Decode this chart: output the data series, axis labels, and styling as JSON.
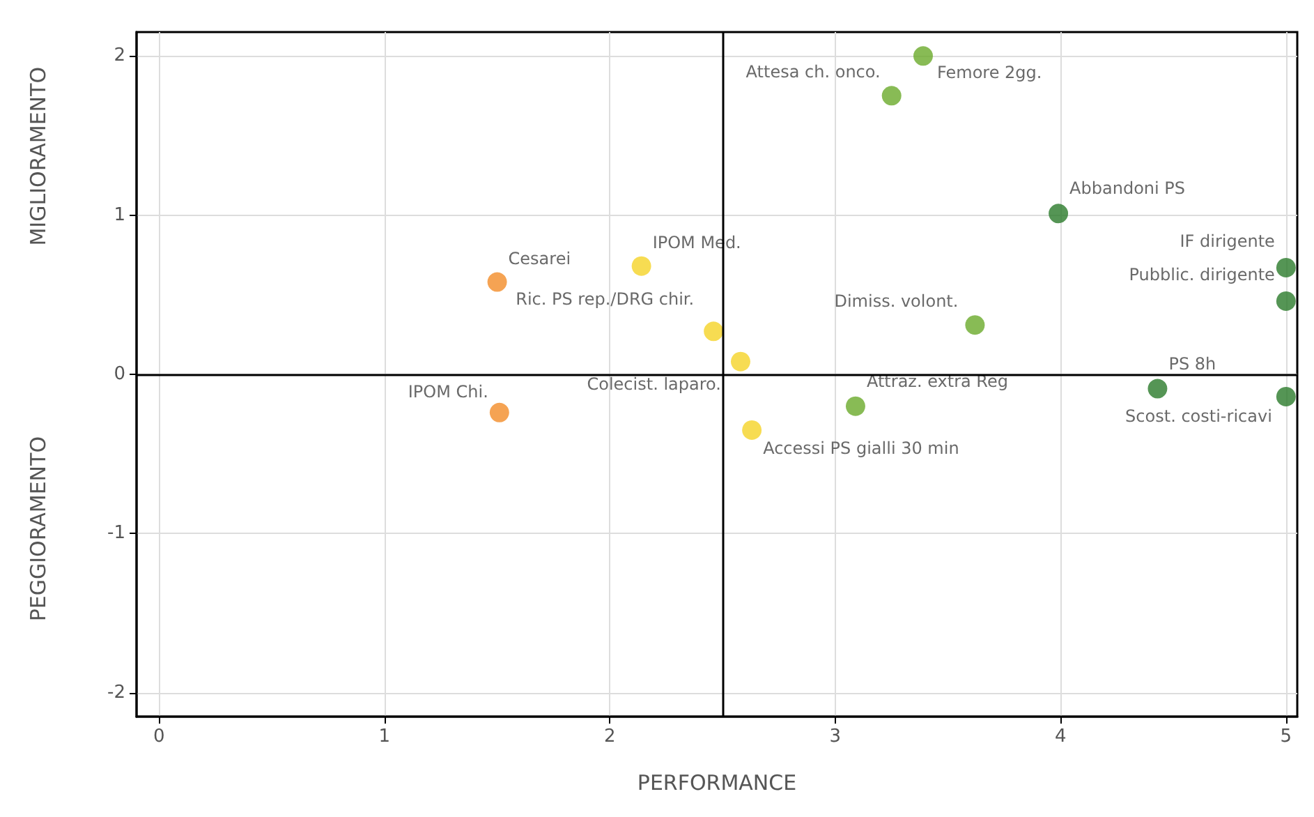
{
  "chart_data": {
    "type": "scatter",
    "xlabel": "PERFORMANCE",
    "ylabel": "MIGLIORAMENTO",
    "x": [
      3.25,
      3.39,
      3.99,
      5.0,
      5.0,
      3.62,
      2.14,
      1.5,
      2.46,
      2.58,
      1.51,
      3.09,
      2.63,
      4.43,
      5.0
    ],
    "values": [
      1.75,
      2.0,
      1.01,
      0.67,
      0.46,
      0.31,
      0.68,
      0.58,
      0.27,
      0.08,
      -0.24,
      -0.2,
      -0.35,
      -0.09,
      -0.14
    ],
    "colors": [
      "#6aaa2a",
      "#6aaa2a",
      "#2a7a2a",
      "#2a7a2a",
      "#2a7a2a",
      "#6aaa2a",
      "#f5d327",
      "#f28c28",
      "#f5d327",
      "#f5d327",
      "#f28c28",
      "#6aaa2a",
      "#f5d327",
      "#2a7a2a",
      "#2a7a2a"
    ],
    "marker": "circle",
    "xlim": [
      -0.1,
      5.05
    ],
    "xticks": [
      0,
      1,
      2,
      3,
      4,
      5
    ],
    "ylim": [
      -2.15,
      2.15
    ],
    "yticks": [
      -2,
      -1,
      0,
      1,
      2
    ],
    "grid": true,
    "ref_lines": [
      {
        "axis": "x",
        "value": 2.5,
        "color": "#000000"
      },
      {
        "axis": "y",
        "value": 0,
        "color": "#000000"
      }
    ],
    "annotations": [
      {
        "text": "Attesa ch. onco.",
        "x": 3.25,
        "y": 1.75
      },
      {
        "text": "Femore 2gg.",
        "x": 3.39,
        "y": 2.0
      },
      {
        "text": "Abbandoni PS",
        "x": 3.99,
        "y": 1.01
      },
      {
        "text": "IF dirigente",
        "x": 5.0,
        "y": 0.67
      },
      {
        "text": "Pubblic. dirigente",
        "x": 5.0,
        "y": 0.46
      },
      {
        "text": "Dimiss. volont.",
        "x": 3.62,
        "y": 0.31
      },
      {
        "text": "IPOM Med.",
        "x": 2.14,
        "y": 0.68
      },
      {
        "text": "Cesarei",
        "x": 1.5,
        "y": 0.58
      },
      {
        "text": "Ric. PS rep./DRG chir.",
        "x": 2.46,
        "y": 0.27
      },
      {
        "text": "Colecist. laparo.",
        "x": 2.58,
        "y": 0.08
      },
      {
        "text": "IPOM Chi.",
        "x": 1.51,
        "y": -0.24
      },
      {
        "text": "Attraz. extra Reg",
        "x": 3.09,
        "y": -0.2
      },
      {
        "text": "Accessi PS gialli 30 min",
        "x": 2.63,
        "y": -0.35
      },
      {
        "text": "PS 8h",
        "x": 4.43,
        "y": -0.09
      },
      {
        "text": "Scost. costi-ricavi",
        "x": 5.0,
        "y": -0.14
      },
      "PEGGIORAMENTO"
    ]
  }
}
